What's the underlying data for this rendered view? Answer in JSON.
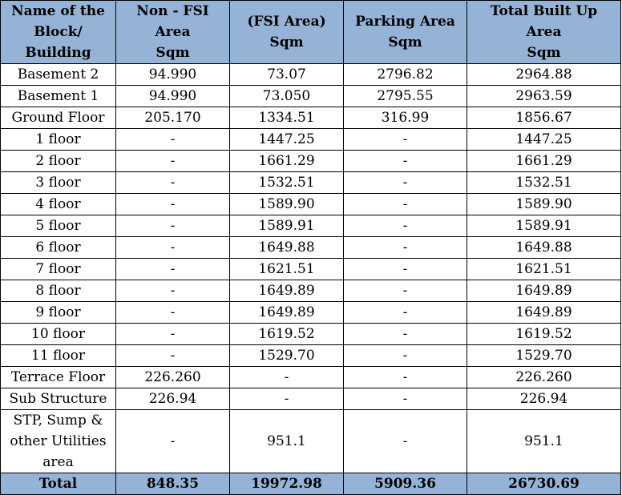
{
  "table": {
    "headers": [
      [
        "Name of the",
        "Block/",
        "Building"
      ],
      [
        "Non - FSI",
        "Area",
        "Sqm"
      ],
      [
        "(FSI Area)",
        "Sqm"
      ],
      [
        "Parking Area",
        "Sqm"
      ],
      [
        "Total Built Up",
        "Area",
        "Sqm"
      ]
    ],
    "rows": [
      [
        "Basement 2",
        "94.990",
        "73.07",
        "2796.82",
        "2964.88"
      ],
      [
        "Basement 1",
        "94.990",
        "73.050",
        "2795.55",
        "2963.59"
      ],
      [
        "Ground Floor",
        "205.170",
        "1334.51",
        "316.99",
        "1856.67"
      ],
      [
        "1 floor",
        "-",
        "1447.25",
        "-",
        "1447.25"
      ],
      [
        "2 floor",
        "-",
        "1661.29",
        "-",
        "1661.29"
      ],
      [
        "3 floor",
        "-",
        "1532.51",
        "-",
        "1532.51"
      ],
      [
        "4 floor",
        "-",
        "1589.90",
        "-",
        "1589.90"
      ],
      [
        "5 floor",
        "-",
        "1589.91",
        "-",
        "1589.91"
      ],
      [
        "6 floor",
        "-",
        "1649.88",
        "-",
        "1649.88"
      ],
      [
        "7 floor",
        "-",
        "1621.51",
        "-",
        "1621.51"
      ],
      [
        "8 floor",
        "-",
        "1649.89",
        "-",
        "1649.89"
      ],
      [
        "9 floor",
        "-",
        "1649.89",
        "-",
        "1649.89"
      ],
      [
        "10 floor",
        "-",
        "1619.52",
        "-",
        "1619.52"
      ],
      [
        "11 floor",
        "-",
        "1529.70",
        "-",
        "1529.70"
      ],
      [
        "Terrace Floor",
        "226.260",
        "-",
        "-",
        "226.260"
      ],
      [
        "Sub Structure",
        "226.94",
        "-",
        "-",
        "226.94"
      ]
    ],
    "utilities_row": {
      "name_lines": [
        "STP, Sump &",
        "other Utilities",
        "area"
      ],
      "non_fsi": "-",
      "fsi": "951.1",
      "parking": "-",
      "total": "951.1"
    },
    "total_row": [
      "Total",
      "848.35",
      "19972.98",
      "5909.36",
      "26730.69"
    ]
  },
  "colors": {
    "header_bg": "#95b3d7",
    "border": "#000000"
  }
}
